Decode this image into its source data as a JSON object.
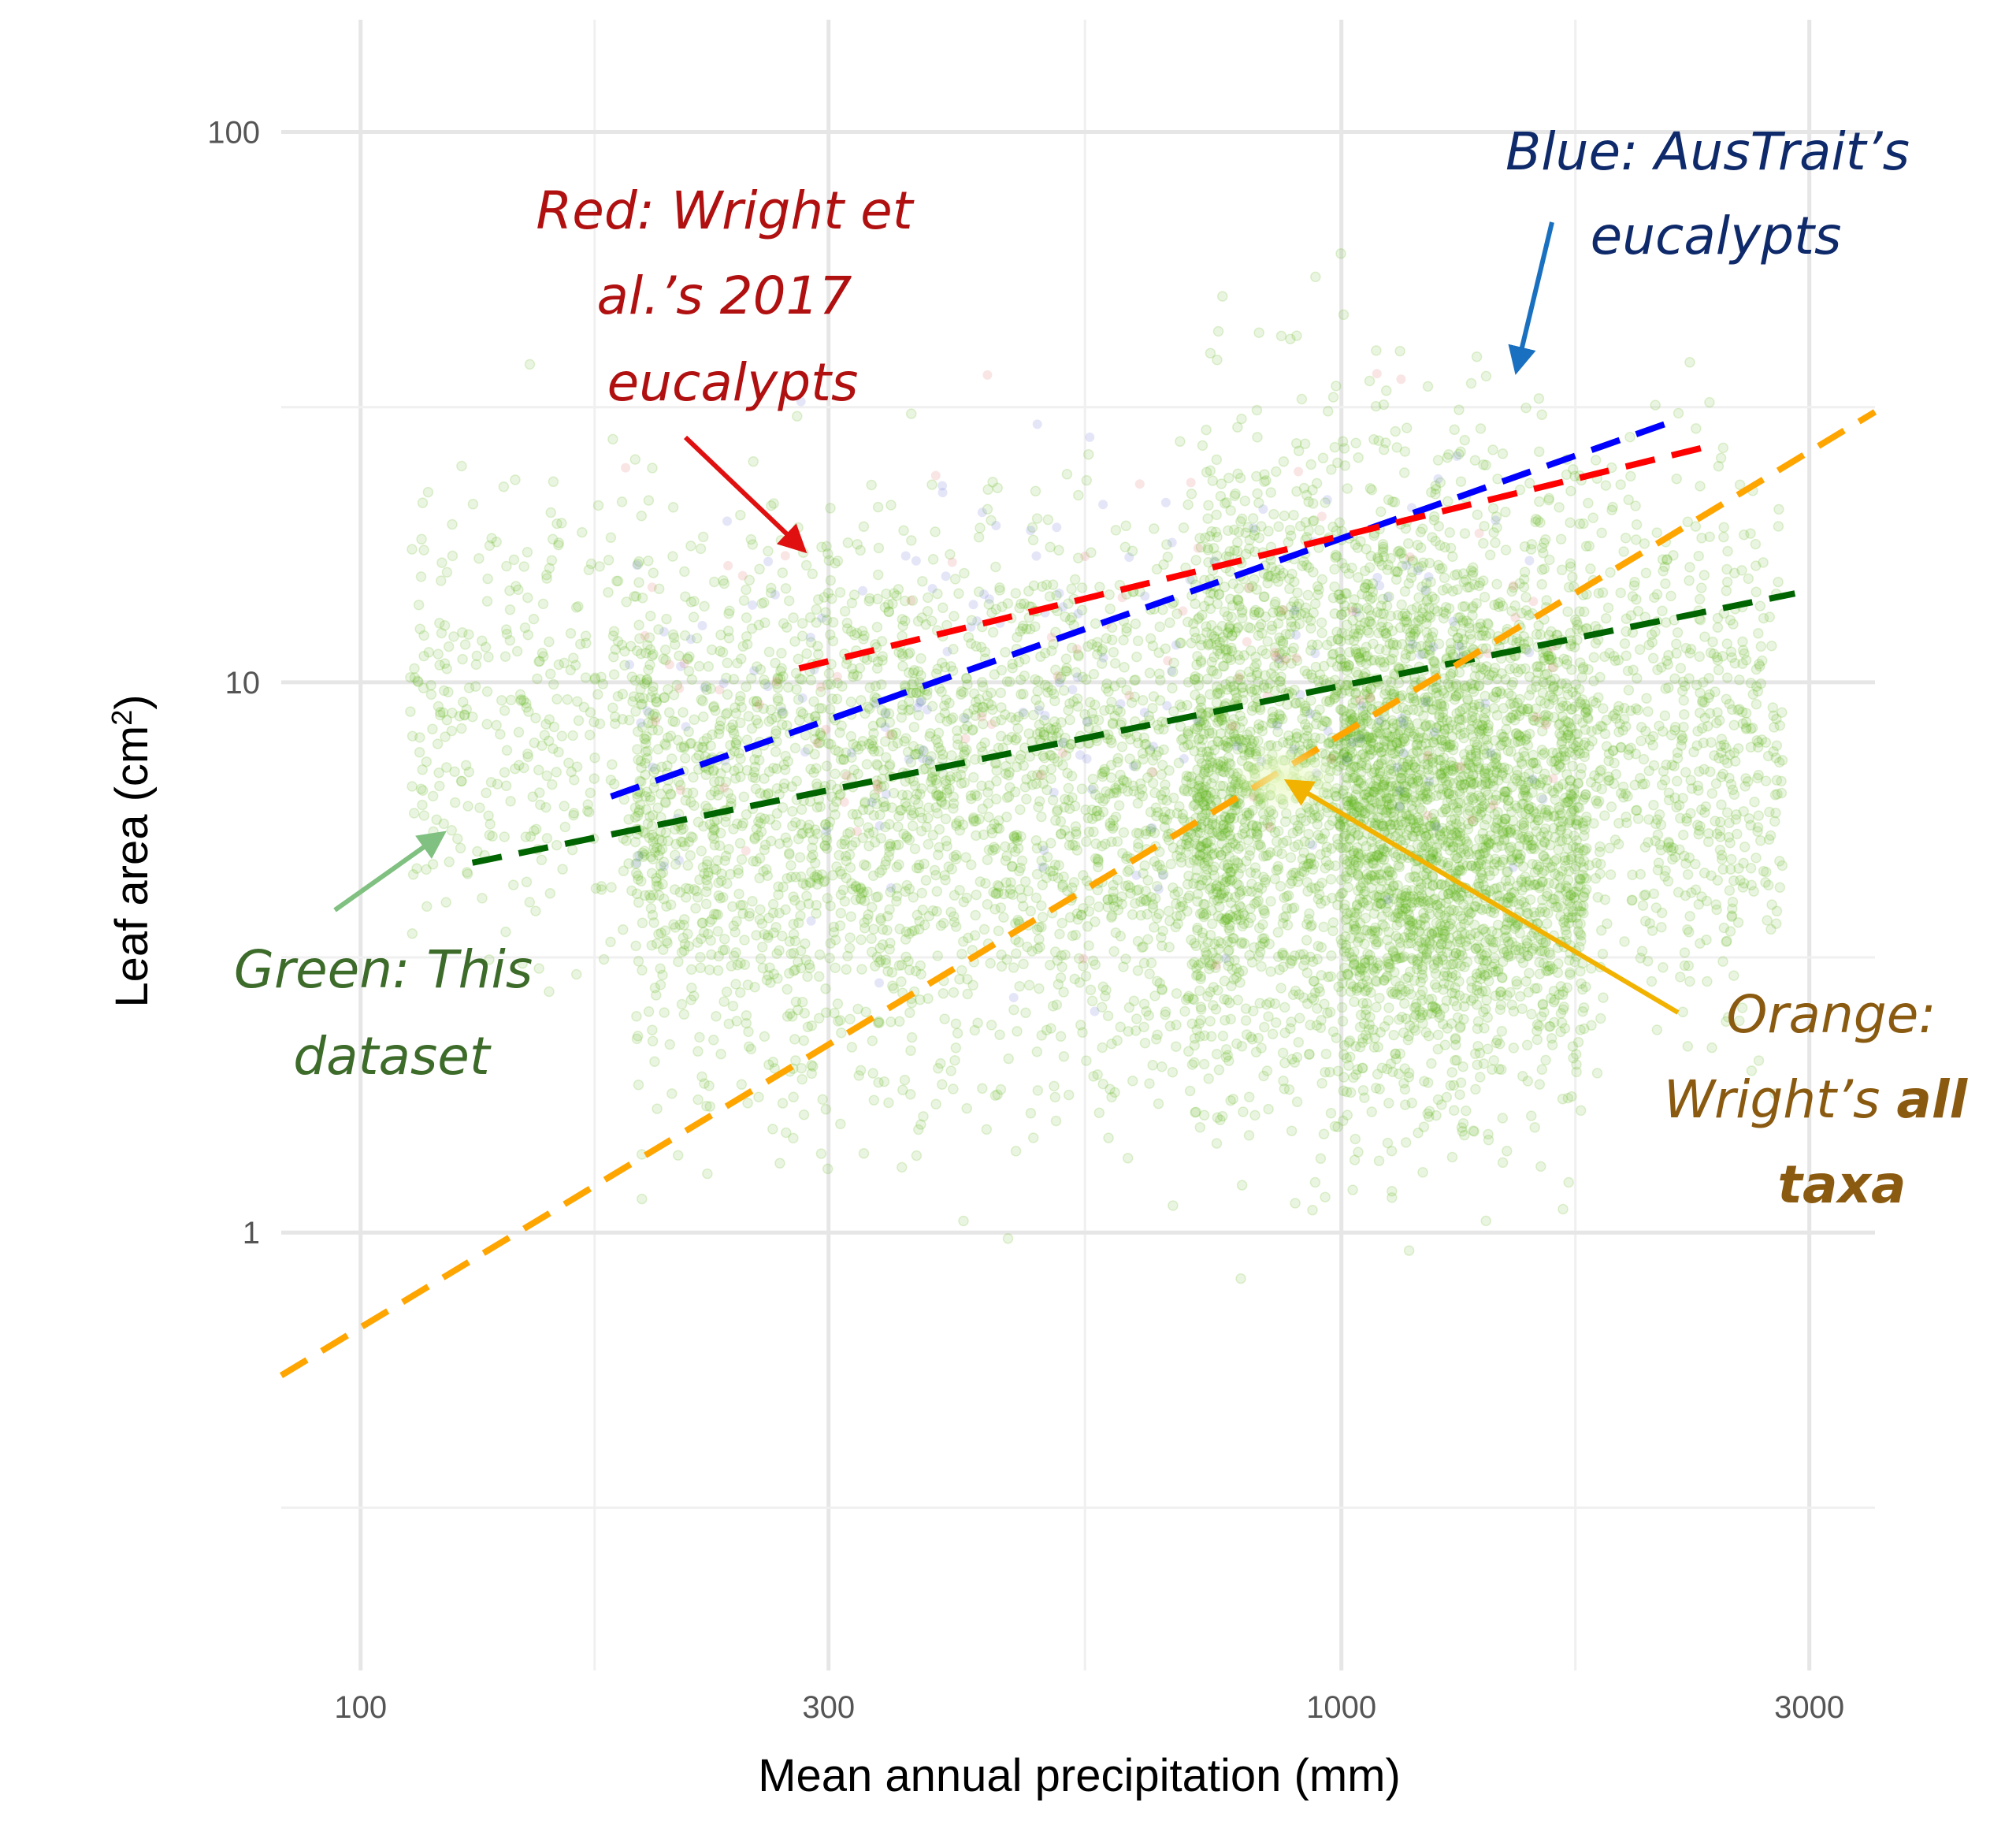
{
  "chart_data": {
    "type": "scatter",
    "xlabel": "Mean annual precipitation (mm)",
    "ylabel_main": "Leaf area (cm",
    "ylabel_sup": "2",
    "ylabel_close": ")",
    "x_scale": "log",
    "y_scale": "log",
    "xlim": [
      83,
      3500
    ],
    "ylim": [
      0.16,
      160
    ],
    "x_ticks": [
      100,
      300,
      1000,
      3000
    ],
    "x_tick_labels": [
      "100",
      "300",
      "1000",
      "3000"
    ],
    "y_ticks": [
      1,
      10,
      100
    ],
    "y_tick_labels": [
      "1",
      "10",
      "100"
    ],
    "grid": true,
    "series": [
      {
        "color": "#0000ff",
        "line": {
          "x": [
            180,
            2200
          ],
          "y": [
            6.2,
            30
          ]
        }
      },
      {
        "color": "#ff0000",
        "line": {
          "x": [
            280,
            2400
          ],
          "y": [
            10.6,
            27
          ]
        }
      },
      {
        "color": "#006400",
        "line": {
          "x": [
            130,
            2900
          ],
          "y": [
            4.7,
            14.5
          ]
        }
      },
      {
        "color": "#ffa500",
        "line": {
          "x": [
            83,
            3500
          ],
          "y": [
            0.55,
            31
          ]
        }
      }
    ],
    "scatter_color": "#5db516",
    "annotations": [
      {
        "lines": [
          "Red: Wright et",
          "al.’s 2017",
          "eucalypts"
        ],
        "color": "#b01010"
      },
      {
        "lines": [
          "Blue: AusTrait’s",
          "eucalypts"
        ],
        "color": "#0f2a6b"
      },
      {
        "lines": [
          "Green: This",
          "dataset"
        ],
        "color": "#3d6b2a"
      },
      {
        "lines": [
          "Orange:",
          "Wright’s ",
          "taxa"
        ],
        "bold_word": "all",
        "color": "#8a5a10"
      }
    ]
  }
}
